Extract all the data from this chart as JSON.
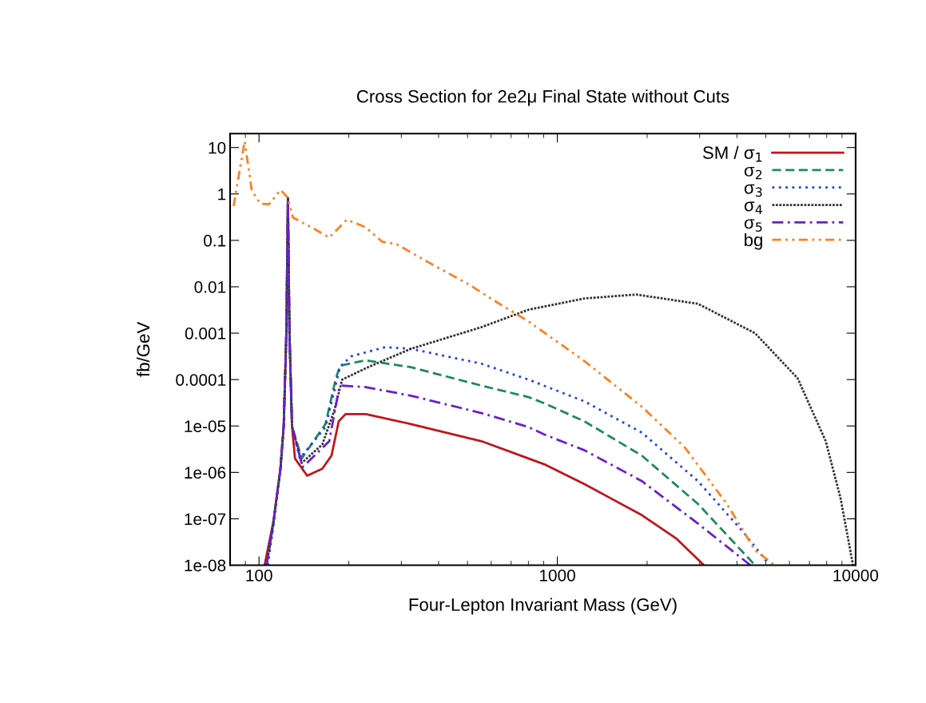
{
  "chart_data": {
    "type": "line",
    "title": "Cross Section for 2e2μ Final State without Cuts",
    "xlabel": "Four-Lepton Invariant Mass (GeV)",
    "ylabel": "fb/GeV",
    "log": "xy",
    "xlim": [
      80,
      10000
    ],
    "ylim": [
      1e-08,
      20
    ],
    "xticks": [
      100,
      1000,
      10000
    ],
    "yticks": [
      10,
      1,
      0.1,
      0.01,
      0.001,
      0.0001,
      {
        "value": 1e-05,
        "label": "1e-05"
      },
      {
        "value": 1e-06,
        "label": "1e-06"
      },
      {
        "value": 1e-07,
        "label": "1e-07"
      },
      {
        "value": 1e-08,
        "label": "1e-08"
      }
    ],
    "grid": false,
    "legend": "top right",
    "series": [
      {
        "name": "SM / σ$_{1}$",
        "color": "#c0161b",
        "line_style": "solid",
        "x": [
          104.4,
          111.7,
          118,
          121,
          123.5,
          125,
          126.5,
          129,
          132,
          145,
          163,
          175,
          185,
          195,
          228,
          323,
          557,
          800,
          903,
          1233,
          1920,
          2500,
          3100
        ],
        "values": [
          1e-08,
          8.7e-08,
          1.2e-06,
          1e-05,
          0.001,
          0.79,
          0.001,
          1e-05,
          2e-06,
          8.5e-07,
          1.2e-06,
          2.3e-06,
          1.26e-05,
          1.8e-05,
          1.8e-05,
          1.1e-05,
          4.7e-06,
          2e-06,
          1.5e-06,
          5.6e-07,
          1.2e-07,
          3.8e-08,
          1e-08
        ]
      },
      {
        "name": "σ$_{2}$",
        "color": "#1d8a5c",
        "line_style": "dashed",
        "x": [
          106,
          111.7,
          118,
          121,
          123.5,
          125,
          126.5,
          129,
          139,
          167,
          181,
          187,
          228,
          323,
          557,
          800,
          903,
          1233,
          1920,
          2960,
          4600
        ],
        "values": [
          1e-08,
          8e-08,
          1.2e-06,
          1e-05,
          0.001,
          0.79,
          0.001,
          1e-05,
          2e-06,
          1.1e-05,
          0.000107,
          0.0002,
          0.00026,
          0.000185,
          7.4e-05,
          4.2e-05,
          3.1e-05,
          1.26e-05,
          2.3e-06,
          2.1e-07,
          1e-08
        ]
      },
      {
        "name": "σ$_{3}$",
        "color": "#1f3cff",
        "line_style": "dotted",
        "x": [
          107,
          111.7,
          118,
          121,
          123.5,
          125,
          126.5,
          129,
          137,
          167,
          187,
          204,
          265,
          323,
          557,
          800,
          1233,
          1920,
          2960,
          4220,
          5150
        ],
        "values": [
          1e-08,
          7e-08,
          1.2e-06,
          1e-05,
          0.001,
          0.79,
          0.001,
          1e-05,
          2e-06,
          9.5e-06,
          0.00019,
          0.00032,
          0.0005,
          0.00046,
          0.00022,
          0.0001,
          3.4e-05,
          7.2e-06,
          6.5e-07,
          5e-08,
          1e-08
        ]
      },
      {
        "name": "σ$_{4}$",
        "color": "#333333",
        "line_style": "densely dotted",
        "x": [
          106,
          111.7,
          118,
          121,
          123.5,
          125,
          126.5,
          129,
          139,
          163,
          179,
          190,
          232,
          323,
          557,
          800,
          1233,
          1840,
          2960,
          4600,
          6390,
          7940,
          8900,
          9800
        ],
        "values": [
          1e-08,
          8e-08,
          1.2e-06,
          1e-05,
          0.001,
          0.79,
          0.001,
          1e-05,
          1.6e-06,
          4e-06,
          2.2e-05,
          0.0001,
          0.000185,
          0.00046,
          0.00135,
          0.0032,
          0.0056,
          0.0068,
          0.0043,
          0.001,
          0.000107,
          4.7e-06,
          2.8e-07,
          1e-08
        ]
      },
      {
        "name": "σ$_{5}$",
        "color": "#6a1fd0",
        "line_style": "dashdot",
        "x": [
          106,
          111.7,
          118,
          121,
          123.5,
          125,
          126.5,
          129,
          140,
          172,
          185,
          190,
          228,
          323,
          557,
          800,
          903,
          1233,
          1920,
          2960,
          4440
        ],
        "values": [
          1e-08,
          8e-08,
          1.2e-06,
          1e-05,
          0.001,
          0.79,
          0.001,
          1e-05,
          1.3e-06,
          4.7e-06,
          6e-05,
          7.4e-05,
          6.9e-05,
          4.5e-05,
          1.9e-05,
          9.5e-06,
          6.6e-06,
          3e-06,
          6.5e-07,
          7.9e-08,
          1e-08
        ]
      },
      {
        "name": "bg",
        "color": "#ff7f1e",
        "line_style": "dashdotdot",
        "x": [
          82.2,
          89.5,
          94.6,
          101,
          108,
          118,
          124.7,
          130,
          150,
          172,
          197,
          228,
          259,
          289,
          360,
          502,
          622,
          800,
          1233,
          1920,
          2670,
          3700,
          4600,
          5350
        ],
        "values": [
          0.55,
          13.7,
          1.17,
          0.62,
          0.6,
          1.22,
          0.84,
          0.31,
          0.19,
          0.115,
          0.28,
          0.19,
          0.093,
          0.083,
          0.037,
          0.0115,
          0.0048,
          0.0018,
          0.00025,
          2.6e-05,
          3.5e-06,
          2.1e-07,
          2.1e-08,
          1e-08
        ]
      }
    ]
  }
}
